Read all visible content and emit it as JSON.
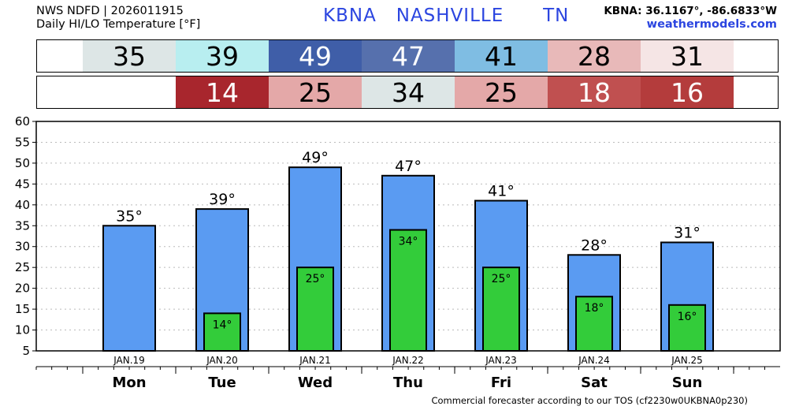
{
  "header": {
    "line1": "NWS NDFD | 2026011915",
    "line2": "Daily HI/LO Temperature [°F]",
    "title": "KBNA   NASHVILLE      TN",
    "coords": "KBNA: 36.1167°, -86.6833°W",
    "site": "weathermodels.com"
  },
  "hi_row": [
    {
      "text": "35",
      "bg": "#dde6e6",
      "fg": "#000000"
    },
    {
      "text": "39",
      "bg": "#b8eef0",
      "fg": "#000000"
    },
    {
      "text": "49",
      "bg": "#3f5ea8",
      "fg": "#ffffff"
    },
    {
      "text": "47",
      "bg": "#5670ad",
      "fg": "#ffffff"
    },
    {
      "text": "41",
      "bg": "#7fbde3",
      "fg": "#000000"
    },
    {
      "text": "28",
      "bg": "#e8b9b9",
      "fg": "#000000"
    },
    {
      "text": "31",
      "bg": "#f5e5e5",
      "fg": "#000000"
    }
  ],
  "lo_row": [
    {
      "text": "",
      "bg": "#ffffff",
      "fg": "#000000"
    },
    {
      "text": "14",
      "bg": "#a8262d",
      "fg": "#ffffff"
    },
    {
      "text": "25",
      "bg": "#e4a8a8",
      "fg": "#000000"
    },
    {
      "text": "34",
      "bg": "#dde6e6",
      "fg": "#000000"
    },
    {
      "text": "25",
      "bg": "#e4a8a8",
      "fg": "#000000"
    },
    {
      "text": "18",
      "bg": "#c05050",
      "fg": "#ffffff"
    },
    {
      "text": "16",
      "bg": "#b43c3c",
      "fg": "#ffffff"
    }
  ],
  "chart_data": {
    "type": "bar",
    "dates": [
      "JAN.19",
      "JAN.20",
      "JAN.21",
      "JAN.22",
      "JAN.23",
      "JAN.24",
      "JAN.25"
    ],
    "categories": [
      "Mon",
      "Tue",
      "Wed",
      "Thu",
      "Fri",
      "Sat",
      "Sun"
    ],
    "series": [
      {
        "values": [
          35,
          39,
          49,
          47,
          41,
          28,
          31
        ],
        "color": "#5a9bf2"
      },
      {
        "values": [
          null,
          14,
          25,
          34,
          25,
          18,
          16
        ],
        "color": "#33cc3a"
      }
    ],
    "hi_labels": [
      "35°",
      "39°",
      "49°",
      "47°",
      "41°",
      "28°",
      "31°"
    ],
    "lo_labels": [
      "",
      "14°",
      "25°",
      "34°",
      "25°",
      "18°",
      "16°"
    ],
    "ylim": [
      5,
      60
    ],
    "yticks": [
      "5",
      "10",
      "15",
      "20",
      "25",
      "30",
      "35",
      "40",
      "45",
      "50",
      "55",
      "60"
    ],
    "grid": true
  },
  "footer": "Commercial forecaster according to our TOS (cf2230w0UKBNA0p230)"
}
